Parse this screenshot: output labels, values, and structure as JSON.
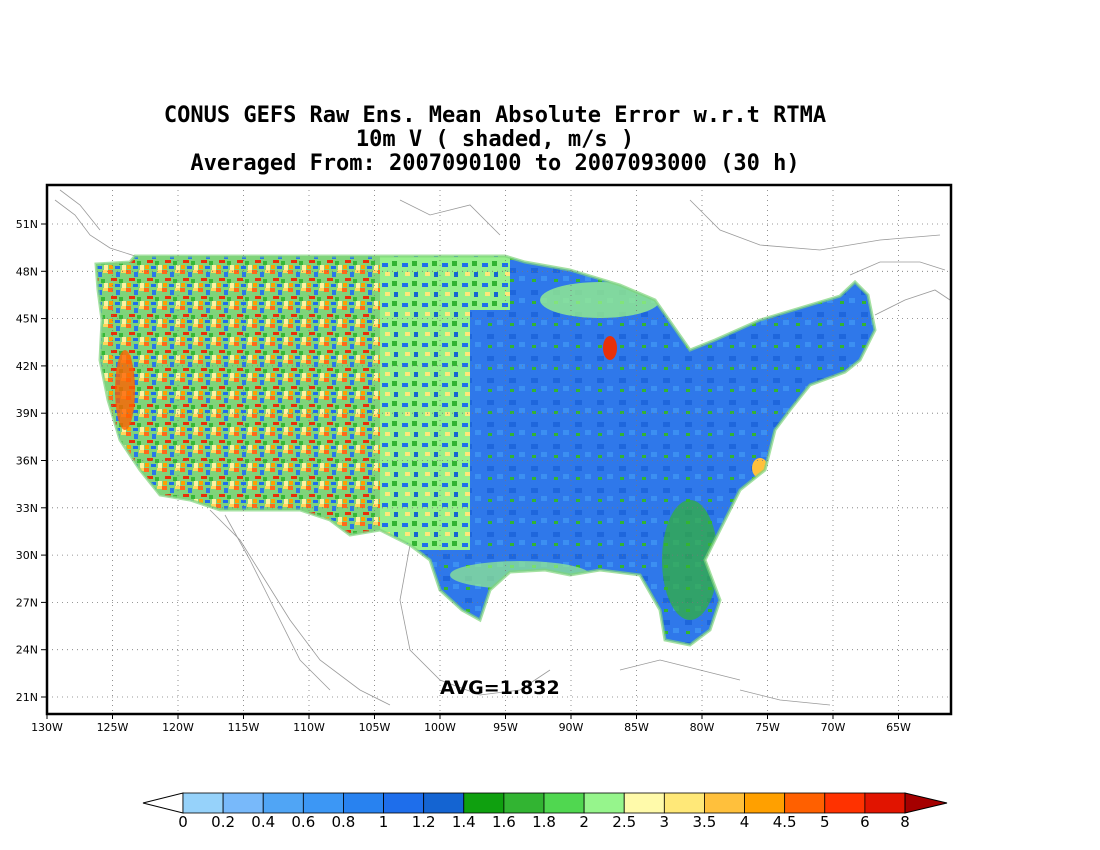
{
  "title": {
    "line1": "CONUS GEFS Raw Ens. Mean Absolute Error w.r.t RTMA",
    "line2": "10m V ( shaded, m/s )",
    "line3": "Averaged From: 2007090100 to 2007093000 (30 h)"
  },
  "map": {
    "avg_label": "AVG=1.832",
    "lat_labels": [
      "51N",
      "48N",
      "45N",
      "42N",
      "39N",
      "36N",
      "33N",
      "30N",
      "27N",
      "24N",
      "21N"
    ],
    "lon_labels": [
      "130W",
      "125W",
      "120W",
      "115W",
      "110W",
      "105W",
      "100W",
      "95W",
      "90W",
      "85W",
      "80W",
      "75W",
      "70W",
      "65W"
    ],
    "west_pattern": "speckled mix of green, yellow, orange, red and blue over the western US",
    "east_pattern": "mostly blue over the central and eastern US with green edges"
  },
  "colorbar": {
    "labels": [
      "0",
      "0.2",
      "0.4",
      "0.6",
      "0.8",
      "1",
      "1.2",
      "1.4",
      "1.6",
      "1.8",
      "2",
      "2.5",
      "3",
      "3.5",
      "4",
      "4.5",
      "5",
      "6",
      "8"
    ],
    "colors": [
      "#96d2fa",
      "#78b9fa",
      "#50a5f5",
      "#3c97f5",
      "#2882f0",
      "#1e6eeb",
      "#1464d2",
      "#0fa00f",
      "#32b432",
      "#50d750",
      "#96f58c",
      "#fffaaa",
      "#ffe878",
      "#ffc03c",
      "#ffa000",
      "#ff6000",
      "#ff3200",
      "#e11400",
      "#a50000"
    ],
    "under_color": "#ffffff",
    "over_color": "#a50000"
  }
}
